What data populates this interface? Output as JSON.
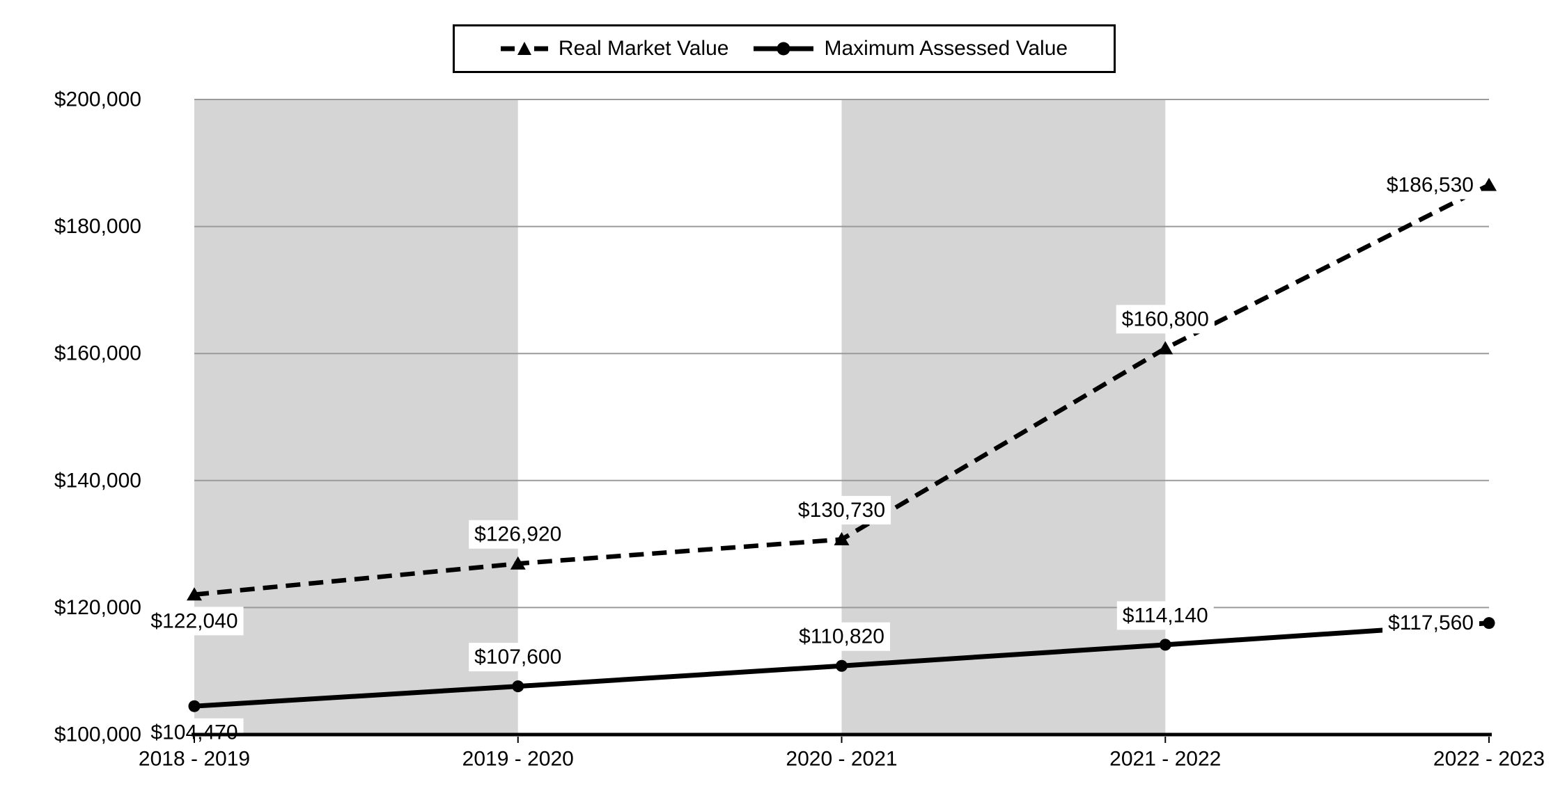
{
  "chart_data": {
    "type": "line",
    "title": "",
    "categories": [
      "2018 - 2019",
      "2019 - 2020",
      "2020 - 2021",
      "2021 - 2022",
      "2022 - 2023"
    ],
    "series": [
      {
        "name": "Real Market Value",
        "line_style": "dashed",
        "marker": "triangle",
        "values": [
          122040,
          126920,
          130730,
          160800,
          186530
        ],
        "data_labels": [
          "$122,040",
          "$126,920",
          "$130,730",
          "$160,800",
          "$186,530"
        ],
        "label_placements": [
          "below",
          "above",
          "above",
          "above",
          "left"
        ]
      },
      {
        "name": "Maximum Assessed Value",
        "line_style": "solid",
        "marker": "circle",
        "values": [
          104470,
          107600,
          110820,
          114140,
          117560
        ],
        "data_labels": [
          "$104,470",
          "$107,600",
          "$110,820",
          "$114,140",
          "$117,560"
        ],
        "label_placements": [
          "below",
          "above",
          "above",
          "above",
          "left"
        ]
      }
    ],
    "y_axis": {
      "min": 100000,
      "max": 200000,
      "tick_interval": 20000,
      "tick_labels": [
        "$100,000",
        "$120,000",
        "$140,000",
        "$160,000",
        "$180,000",
        "$200,000"
      ]
    },
    "x_axis": {
      "tick_labels": [
        "2018 - 2019",
        "2019 - 2020",
        "2020 - 2021",
        "2021 - 2022",
        "2022 - 2023"
      ]
    },
    "shaded_bands": [
      [
        0,
        1
      ],
      [
        2,
        3
      ]
    ],
    "grid": true,
    "legend_position": "top-center",
    "colors": {
      "series": "#000000",
      "band": "#d5d5d5",
      "gridline": "#9a9a9a",
      "axis_line": "#000000",
      "label_background": "#ffffff",
      "text": "#000000"
    }
  }
}
